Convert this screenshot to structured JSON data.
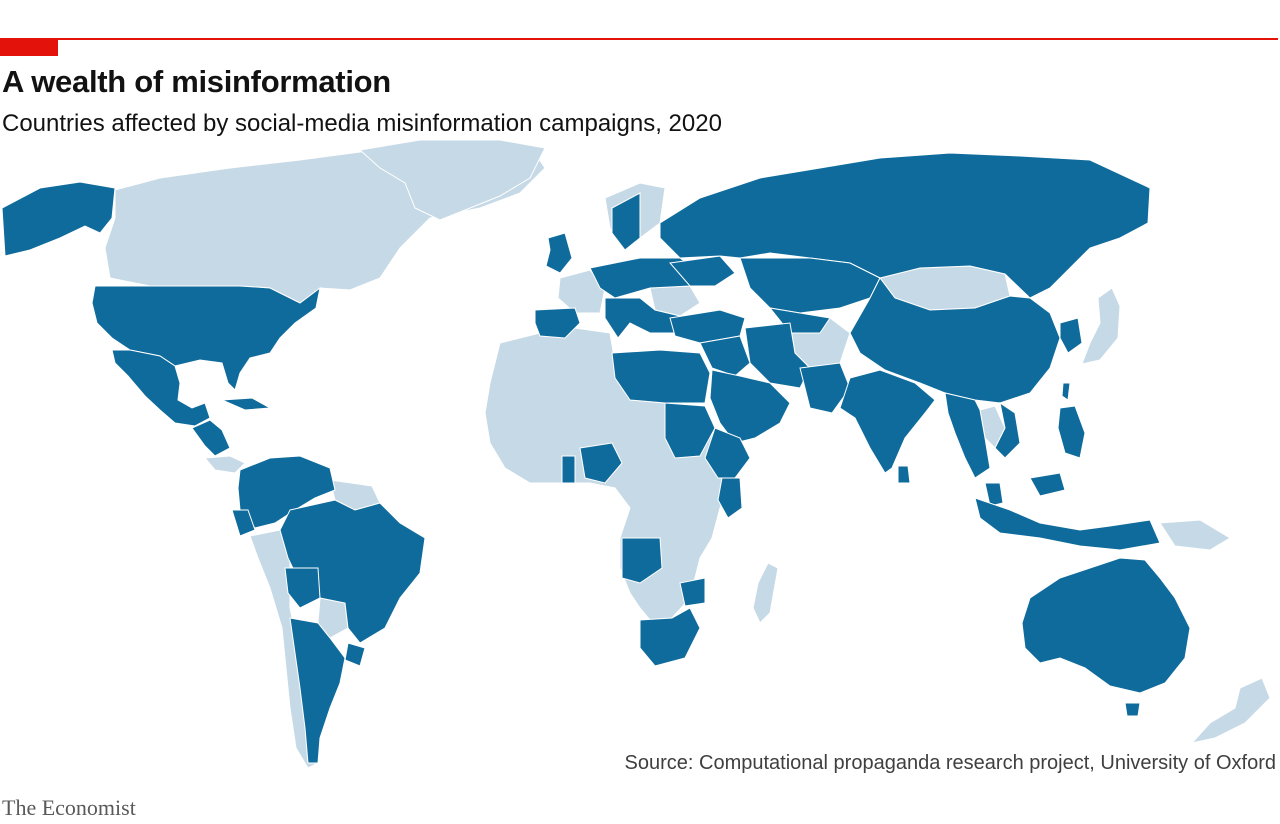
{
  "header": {
    "title": "A wealth of misinformation",
    "subtitle": "Countries affected by social-media misinformation campaigns, 2020"
  },
  "footer": {
    "source": "Source: Computational propaganda research project, University of Oxford",
    "brand": "The Economist"
  },
  "colors": {
    "accent": "#e3120b",
    "affected": "#0f6b9c",
    "not_affected": "#c6d9e6",
    "border": "#ffffff"
  },
  "chart_data": {
    "type": "choropleth",
    "year": 2020,
    "categories": [
      "affected",
      "not_affected"
    ],
    "affected": [
      "United States",
      "Mexico",
      "Guatemala",
      "Honduras",
      "El Salvador",
      "Nicaragua",
      "Costa Rica",
      "Cuba",
      "Venezuela",
      "Colombia",
      "Ecuador",
      "Brazil",
      "Bolivia",
      "Argentina",
      "Uruguay",
      "United Kingdom",
      "Spain",
      "Italy",
      "Germany",
      "Poland",
      "Sweden",
      "Netherlands",
      "Czech Republic",
      "Austria",
      "Hungary",
      "Serbia",
      "Bosnia and Herzegovina",
      "Croatia",
      "Macedonia",
      "Greece",
      "Moldova",
      "Ukraine",
      "Russia",
      "Turkey",
      "Georgia",
      "Armenia",
      "Azerbaijan",
      "Kazakhstan",
      "Kyrgyzstan",
      "Uzbekistan",
      "Tajikistan",
      "Iran",
      "Iraq",
      "Syria",
      "Lebanon",
      "Israel",
      "Palestine",
      "Jordan",
      "Saudi Arabia",
      "Yemen",
      "Oman",
      "UAE",
      "Qatar",
      "Bahrain",
      "Kuwait",
      "Egypt",
      "Libya",
      "Tunisia",
      "Sudan",
      "Eritrea",
      "Ethiopia",
      "Kenya",
      "Rwanda",
      "Nigeria",
      "Ghana",
      "Angola",
      "Zimbabwe",
      "South Africa",
      "Pakistan",
      "India",
      "Sri Lanka",
      "China",
      "North Korea",
      "South Korea",
      "Myanmar",
      "Thailand",
      "Cambodia",
      "Vietnam",
      "Philippines",
      "Malaysia",
      "Indonesia",
      "Taiwan",
      "Australia"
    ]
  }
}
